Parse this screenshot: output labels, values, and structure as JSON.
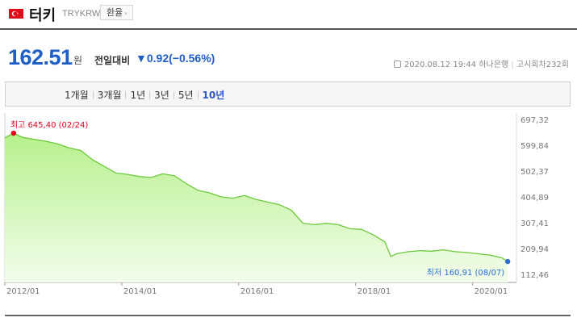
{
  "header": {
    "country": "터키",
    "code": "TRYKRW",
    "category_label": "환율",
    "flag_color": "#e30a17"
  },
  "quote": {
    "price": "162.51",
    "unit": "원",
    "change_label": "전일대비",
    "change_arrow": "▼",
    "change_value": "0.92",
    "change_pct": "(−0.56%)",
    "timestamp": "2020.08.12 19:44",
    "bank": "하나은행",
    "notice": "고시회차232회",
    "price_color": "#1d5fc7"
  },
  "periods": [
    {
      "label": "1개월",
      "active": false
    },
    {
      "label": "3개월",
      "active": false
    },
    {
      "label": "1년",
      "active": false
    },
    {
      "label": "3년",
      "active": false
    },
    {
      "label": "5년",
      "active": false
    },
    {
      "label": "10년",
      "active": true
    }
  ],
  "chart_data": {
    "type": "area",
    "title": "",
    "xlabel": "",
    "ylabel": "",
    "x_ticks": [
      "2012/01",
      "2014/01",
      "2016/01",
      "2018/01",
      "2020/01"
    ],
    "y_ticks": [
      "697,32",
      "599,84",
      "502,37",
      "404,89",
      "307,41",
      "209,94",
      "112,46"
    ],
    "ylim": [
      112.46,
      697.32
    ],
    "xlim": [
      2012.0,
      2020.75
    ],
    "grid": false,
    "line_color": "#6cc93b",
    "fill_color_top": "#b7f08c",
    "fill_color_bottom": "#f3fdec",
    "max_label": "최고 645,40 (02/24)",
    "max_point": {
      "x": 2012.15,
      "y": 645.4
    },
    "max_color": "#e0001b",
    "min_label": "최저 160,91 (08/07)",
    "min_point": {
      "x": 2020.6,
      "y": 160.91
    },
    "min_color": "#2a6fd6",
    "series": [
      {
        "x": [
          2012.0,
          2012.15,
          2012.3,
          2012.5,
          2012.7,
          2012.9,
          2013.1,
          2013.3,
          2013.5,
          2013.7,
          2013.9,
          2014.1,
          2014.3,
          2014.5,
          2014.7,
          2014.9,
          2015.1,
          2015.3,
          2015.5,
          2015.7,
          2015.9,
          2016.1,
          2016.3,
          2016.5,
          2016.7,
          2016.9,
          2017.1,
          2017.3,
          2017.5,
          2017.7,
          2017.9,
          2018.1,
          2018.3,
          2018.5,
          2018.6,
          2018.7,
          2018.9,
          2019.1,
          2019.3,
          2019.5,
          2019.7,
          2019.9,
          2020.1,
          2020.3,
          2020.5,
          2020.6
        ],
        "y": [
          628,
          645.4,
          630,
          622,
          615,
          605,
          590,
          580,
          545,
          520,
          495,
          490,
          482,
          478,
          492,
          485,
          455,
          430,
          420,
          405,
          400,
          410,
          395,
          385,
          375,
          355,
          305,
          300,
          305,
          300,
          285,
          282,
          262,
          235,
          180,
          190,
          198,
          202,
          200,
          205,
          198,
          195,
          190,
          185,
          175,
          160.91
        ]
      }
    ]
  }
}
